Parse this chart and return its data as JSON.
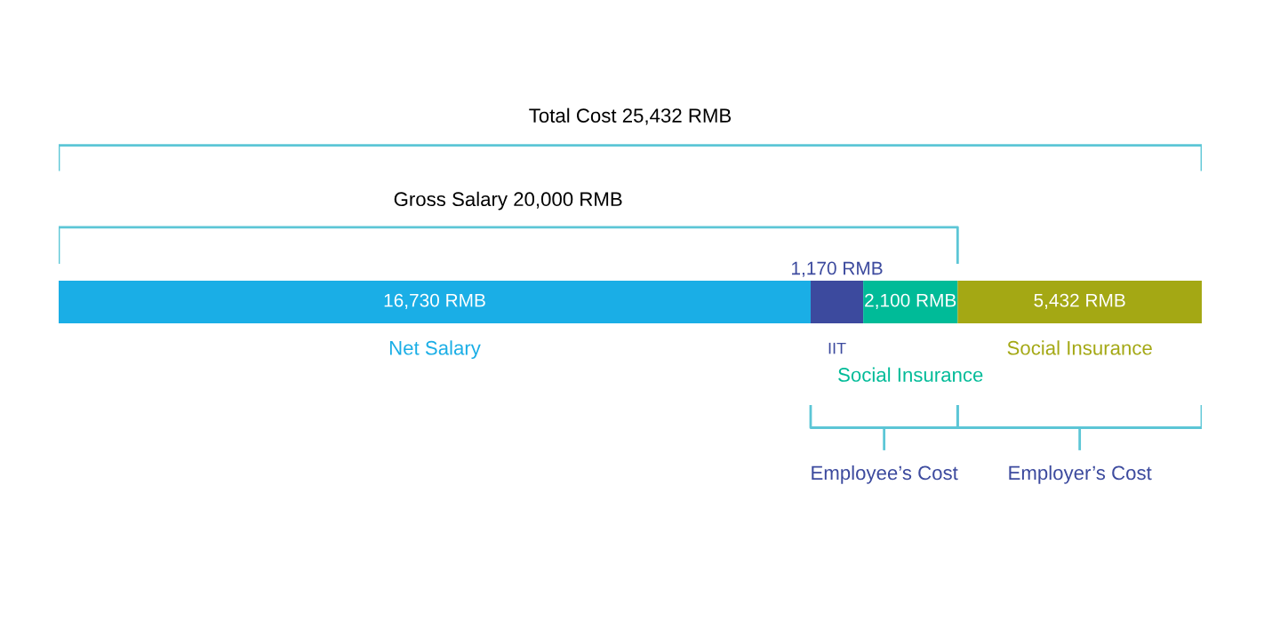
{
  "chart_data": {
    "type": "bar",
    "orientation": "horizontal",
    "stacked": true,
    "categories": [
      null
    ],
    "series": [
      {
        "name": "Net Salary",
        "color": "#1aaee6",
        "values": [
          16730
        ],
        "value_labels": [
          "16,730 RMB"
        ]
      },
      {
        "name": "IIT",
        "color": "#3c4a9e",
        "values": [
          1170
        ],
        "value_labels": [
          "1,170 RMB"
        ]
      },
      {
        "name": "Social Insurance",
        "color": "#00bb98",
        "values": [
          2100
        ],
        "value_labels": [
          "2,100 RMB"
        ]
      },
      {
        "name": "Social Insurance",
        "color": "#a4a814",
        "values": [
          5432
        ],
        "value_labels": [
          "5,432 RMB"
        ]
      }
    ],
    "annotations": [
      "Total Cost 25,432 RMB",
      "Gross Salary 20,000 RMB",
      "Employee’s Cost",
      "Employer’s Cost"
    ],
    "legend": false,
    "tick_labels": false
  }
}
